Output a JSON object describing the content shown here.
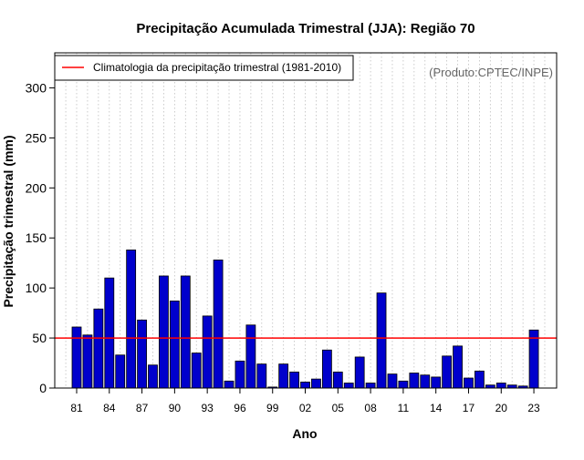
{
  "chart_data": {
    "type": "bar",
    "title": "Precipitação Acumulada Trimestral (JJA): Região 70",
    "xlabel": "Ano",
    "ylabel": "Precipitação trimestral (mm)",
    "ylim": [
      0,
      335
    ],
    "yticks": [
      0,
      50,
      100,
      150,
      200,
      250,
      300
    ],
    "grid": "vertical-dotted",
    "credit": "(Produto:CPTEC/INPE)",
    "categories": [
      1981,
      1982,
      1983,
      1984,
      1985,
      1986,
      1987,
      1988,
      1989,
      1990,
      1991,
      1992,
      1993,
      1994,
      1995,
      1996,
      1997,
      1998,
      1999,
      2000,
      2001,
      2002,
      2003,
      2004,
      2005,
      2006,
      2007,
      2008,
      2009,
      2010,
      2011,
      2012,
      2013,
      2014,
      2015,
      2016,
      2017,
      2018,
      2019,
      2020,
      2021,
      2022,
      2023
    ],
    "xtick_labels": [
      {
        "year": 1981,
        "label": "81"
      },
      {
        "year": 1984,
        "label": "84"
      },
      {
        "year": 1987,
        "label": "87"
      },
      {
        "year": 1990,
        "label": "90"
      },
      {
        "year": 1993,
        "label": "93"
      },
      {
        "year": 1996,
        "label": "96"
      },
      {
        "year": 1999,
        "label": "99"
      },
      {
        "year": 2002,
        "label": "02"
      },
      {
        "year": 2005,
        "label": "05"
      },
      {
        "year": 2008,
        "label": "08"
      },
      {
        "year": 2011,
        "label": "11"
      },
      {
        "year": 2014,
        "label": "14"
      },
      {
        "year": 2017,
        "label": "17"
      },
      {
        "year": 2020,
        "label": "20"
      },
      {
        "year": 2023,
        "label": "23"
      }
    ],
    "series": [
      {
        "name": "Precipitação trimestral",
        "color": "#0000cc",
        "values": [
          61,
          53,
          79,
          110,
          33,
          138,
          68,
          23,
          112,
          87,
          112,
          35,
          72,
          128,
          7,
          27,
          63,
          24,
          1,
          24,
          16,
          6,
          9,
          38,
          16,
          5,
          31,
          5,
          95,
          14,
          7,
          15,
          13,
          11,
          32,
          42,
          10,
          17,
          3,
          5,
          3,
          2,
          58
        ]
      }
    ],
    "reference_line": {
      "value": 50,
      "color": "#ff0000",
      "legend_label": "Climatologia da precipitação trimestral (1981-2010)"
    },
    "legend": "top-left"
  }
}
